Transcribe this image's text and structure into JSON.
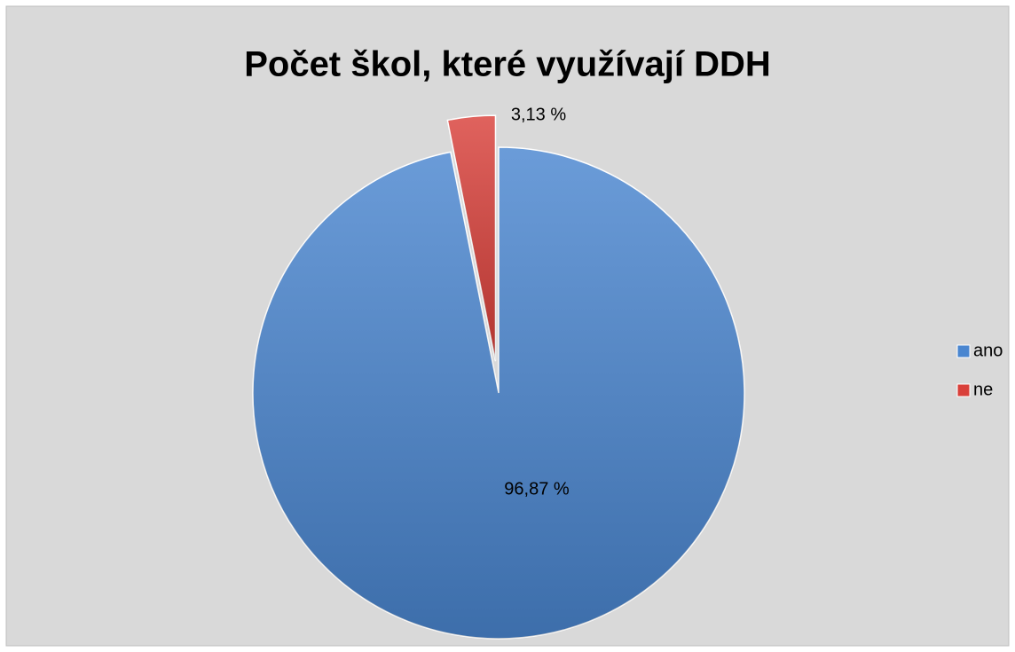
{
  "chart_data": {
    "type": "pie",
    "title": "Počet škol, které využívají DDH",
    "categories": [
      "ano",
      "ne"
    ],
    "values": [
      96.87,
      3.13
    ],
    "value_labels": [
      "96,87 %",
      "3,13 %"
    ],
    "colors": [
      "#4a86d0",
      "#d9403a"
    ],
    "legend": "right"
  }
}
